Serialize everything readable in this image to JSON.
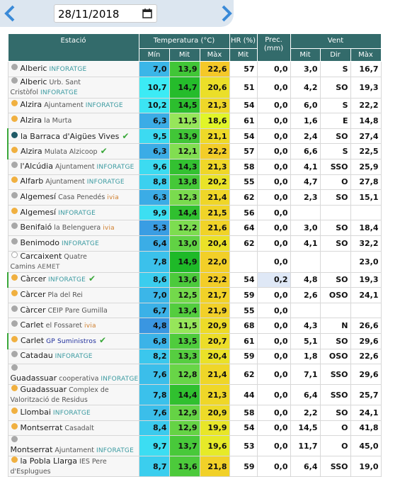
{
  "date": "28/11/2018",
  "headers": {
    "station": "Estació",
    "temperature": "Temperatura (°C)",
    "hr": "HR (%)",
    "prec": "Prec.\n(mm)",
    "wind": "Vent",
    "sub": [
      "Mín",
      "Mit",
      "Màx",
      "Mit",
      "Mit",
      "Dir",
      "Màx"
    ]
  },
  "rows": [
    {
      "name": "Alberic",
      "tag": "INFORATGE",
      "tag_color": "#3a9aa0",
      "dot": "#a8a8a8",
      "cells": [
        "7,0",
        "13,9",
        "22,6",
        "57",
        "0,0",
        "3,0",
        "S",
        "16,7"
      ]
    },
    {
      "name": "Alberic",
      "place": "Urb. Sant Cristòfol",
      "tag": "INFORATGE",
      "tag_color": "#3a9aa0",
      "dot": "#a8a8a8",
      "cells": [
        "10,7",
        "14,7",
        "20,6",
        "51",
        "0,0",
        "4,2",
        "SO",
        "19,3"
      ]
    },
    {
      "name": "Alzira",
      "place": "Ajuntament",
      "tag": "INFORATGE",
      "tag_color": "#3a9aa0",
      "dot": "#f0b040",
      "cells": [
        "10,2",
        "14,5",
        "21,3",
        "54",
        "0,0",
        "6,0",
        "S",
        "22,2"
      ]
    },
    {
      "name": "Alzira",
      "place": "la Murta",
      "dot": "#f0b040",
      "cells": [
        "6,3",
        "11,5",
        "18,6",
        "61",
        "0,0",
        "1,6",
        "E",
        "14,8"
      ]
    },
    {
      "name": "la Barraca d'Aigües Vives",
      "check": true,
      "dot": "#1f5a66",
      "cells": [
        "9,5",
        "13,9",
        "21,1",
        "54",
        "0,0",
        "2,4",
        "SO",
        "27,4"
      ]
    },
    {
      "name": "Alzira",
      "place": "Mulata Alzicoop",
      "check": true,
      "dot": "#f0b040",
      "cells": [
        "6,3",
        "12,1",
        "22,2",
        "57",
        "0,0",
        "6,6",
        "S",
        "22,5"
      ]
    },
    {
      "name": "l'Alcúdia",
      "place": "Ajuntament",
      "tag": "INFORATGE",
      "tag_color": "#3a9aa0",
      "dot": "#a8a8a8",
      "cells": [
        "9,6",
        "14,3",
        "21,3",
        "58",
        "0,0",
        "4,1",
        "SSO",
        "25,9"
      ]
    },
    {
      "name": "Alfarb",
      "place": "Ajuntament",
      "tag": "INFORATGE",
      "tag_color": "#3a9aa0",
      "dot": "#f0b040",
      "cells": [
        "8,8",
        "13,8",
        "20,2",
        "55",
        "0,0",
        "4,7",
        "O",
        "27,8"
      ]
    },
    {
      "name": "Algemesí",
      "place": "Casa Penedés",
      "tag": "ivia",
      "tag_color": "#d08030",
      "dot": "#a8a8a8",
      "cells": [
        "6,3",
        "12,3",
        "21,4",
        "62",
        "0,0",
        "2,3",
        "SO",
        "15,1"
      ]
    },
    {
      "name": "Algemesí",
      "tag": "INFORATGE",
      "tag_color": "#3a9aa0",
      "dot": "#f0b040",
      "cells": [
        "9,9",
        "14,4",
        "21,5",
        "56",
        "0,0",
        null,
        null,
        null
      ]
    },
    {
      "name": "Benifaió",
      "place": "la Belenguera",
      "tag": "ivia",
      "tag_color": "#d08030",
      "dot": "#a8a8a8",
      "cells": [
        "5,3",
        "12,2",
        "21,6",
        "64",
        "0,0",
        "3,0",
        "SO",
        "18,4"
      ]
    },
    {
      "name": "Benimodo",
      "tag": "INFORATGE",
      "tag_color": "#3a9aa0",
      "dot": "#a8a8a8",
      "cells": [
        "6,4",
        "13,0",
        "20,4",
        "62",
        "0,0",
        "4,1",
        "SO",
        "32,2"
      ]
    },
    {
      "name": "Carcaixent",
      "place": "Quatre Camins",
      "tag": "AEMET",
      "tag_color": "#666666",
      "dot": "#ffffff",
      "cells": [
        "7,8",
        "14,9",
        "22,0",
        null,
        "0,0",
        null,
        null,
        "23,0"
      ]
    },
    {
      "name": "Càrcer",
      "tag": "INFORATGE",
      "tag_color": "#3a9aa0",
      "check": true,
      "dot": "#f0b040",
      "cells": [
        "8,6",
        "13,6",
        "22,2",
        "54",
        "0,2",
        "4,8",
        "SO",
        "19,3"
      ]
    },
    {
      "name": "Càrcer",
      "place": "Pla del Rei",
      "dot": "#f0b040",
      "cells": [
        "7,0",
        "12,5",
        "21,7",
        "59",
        "0,0",
        "2,6",
        "OSO",
        "24,1"
      ]
    },
    {
      "name": "Càrcer",
      "place": "CEIP Pare Gumilla",
      "dot": "#a8a8a8",
      "cells": [
        "6,7",
        "13,4",
        "21,9",
        "55",
        "0,0",
        null,
        null,
        null
      ]
    },
    {
      "name": "Carlet",
      "place": "el Fossaret",
      "tag": "ivia",
      "tag_color": "#d08030",
      "dot": "#a8a8a8",
      "cells": [
        "4,8",
        "11,5",
        "20,9",
        "68",
        "0,0",
        "4,3",
        "N",
        "26,6"
      ]
    },
    {
      "name": "Carlet",
      "tag": "GP Suministros",
      "tag_color": "#1a2a9a",
      "check": true,
      "dot": "#f0b040",
      "cells": [
        "6,8",
        "13,5",
        "20,7",
        "61",
        "0,0",
        "5,1",
        "SO",
        "29,6"
      ]
    },
    {
      "name": "Catadau",
      "tag": "INFORATGE",
      "tag_color": "#3a9aa0",
      "dot": "#a8a8a8",
      "cells": [
        "8,2",
        "13,3",
        "20,4",
        "59",
        "0,0",
        "1,8",
        "OSO",
        "22,6"
      ]
    },
    {
      "name": "Guadassuar",
      "place": "cooperativa",
      "tag": "INFORATGE",
      "tag_color": "#3a9aa0",
      "dot": "#a8a8a8",
      "cells": [
        "7,6",
        "12,8",
        "21,4",
        "62",
        "0,0",
        "7,1",
        "SSO",
        "29,6"
      ]
    },
    {
      "name": "Guadassuar",
      "place": "Complex de Valorització de Residus",
      "dot": "#f0b040",
      "cells": [
        "7,8",
        "14,4",
        "21,3",
        "44",
        "0,0",
        "6,4",
        "SSO",
        "25,7"
      ]
    },
    {
      "name": "Llombai",
      "tag": "INFORATGE",
      "tag_color": "#3a9aa0",
      "dot": "#f0b040",
      "cells": [
        "7,6",
        "12,9",
        "20,9",
        "58",
        "0,0",
        "2,2",
        "SO",
        "24,1"
      ]
    },
    {
      "name": "Montserrat",
      "place": "Casadalt",
      "dot": "#f0b040",
      "cells": [
        "8,4",
        "12,9",
        "19,9",
        "54",
        "0,0",
        "14,5",
        "O",
        "41,8"
      ]
    },
    {
      "name": "Montserrat",
      "place": "Ajuntament",
      "tag": "INFORATGE",
      "tag_color": "#3a9aa0",
      "dot": "#a8a8a8",
      "cells": [
        "9,7",
        "13,7",
        "19,6",
        "53",
        "0,0",
        "11,7",
        "O",
        "45,0"
      ]
    },
    {
      "name": "la Pobla Llarga",
      "place": "IES Pere d'Esplugues",
      "dot": "#f0b040",
      "cells": [
        "8,7",
        "13,6",
        "21,8",
        "59",
        "0,0",
        "6,4",
        "SSO",
        "19,0"
      ]
    }
  ]
}
